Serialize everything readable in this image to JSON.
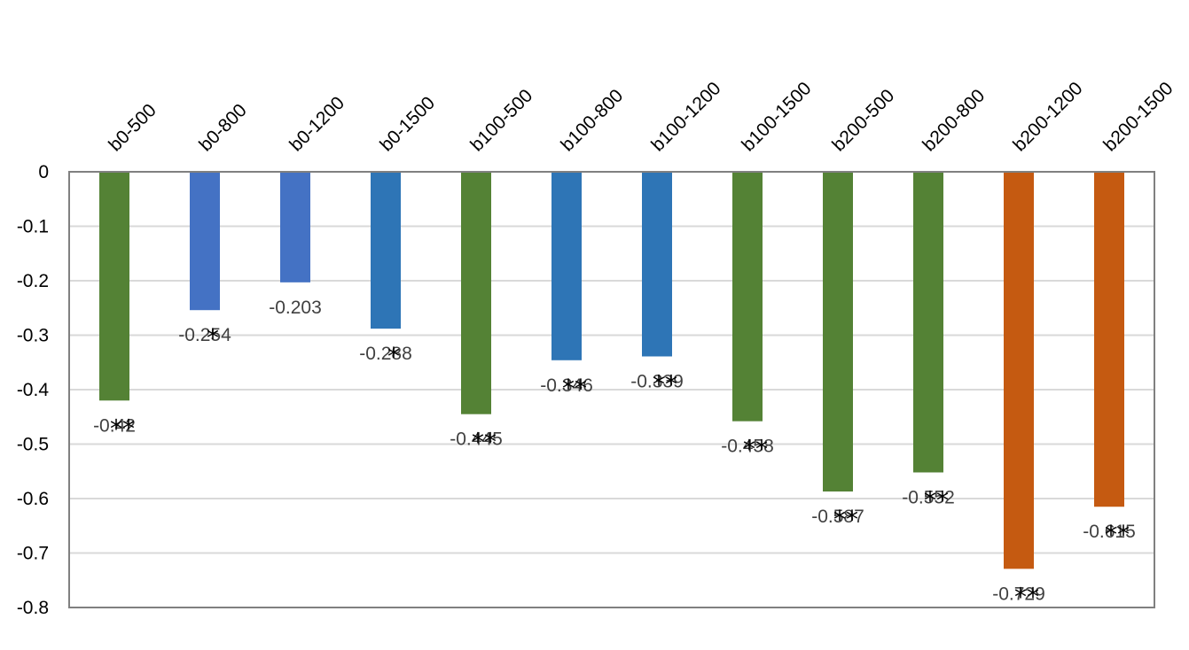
{
  "chart_data": {
    "type": "bar",
    "categories": [
      "b0-500",
      "b0-800",
      "b0-1200",
      "b0-1500",
      "b100-500",
      "b100-800",
      "b100-1200",
      "b100-1500",
      "b200-500",
      "b200-800",
      "b200-1200",
      "b200-1500"
    ],
    "values": [
      -0.42,
      -0.254,
      -0.203,
      -0.288,
      -0.445,
      -0.346,
      -0.339,
      -0.458,
      -0.587,
      -0.552,
      -0.729,
      -0.615
    ],
    "value_labels": [
      "-0.42",
      "-0.254",
      "-0.203",
      "-0.288",
      "-0.445",
      "-0.346",
      "-0.339",
      "-0.458",
      "-0.587",
      "-0.552",
      "-0.729",
      "-0.615"
    ],
    "significance": [
      "**",
      "*",
      "",
      "*",
      "**",
      "**",
      "**",
      "**",
      "**",
      "**",
      "**",
      "**"
    ],
    "bar_colors": [
      "#548235",
      "#4472C4",
      "#4472C4",
      "#2E75B6",
      "#548235",
      "#2E75B6",
      "#2E75B6",
      "#548235",
      "#548235",
      "#548235",
      "#C55A11",
      "#C55A11"
    ],
    "y_ticks": [
      "0",
      "-0.1",
      "-0.2",
      "-0.3",
      "-0.4",
      "-0.5",
      "-0.6",
      "-0.7",
      "-0.8"
    ],
    "ylim": [
      -0.8,
      0
    ],
    "grid": true,
    "x_axis_position": "top",
    "title": "",
    "xlabel": "",
    "ylabel": "",
    "colors": {
      "grid": "#d9d9d9",
      "border": "#808080"
    }
  }
}
